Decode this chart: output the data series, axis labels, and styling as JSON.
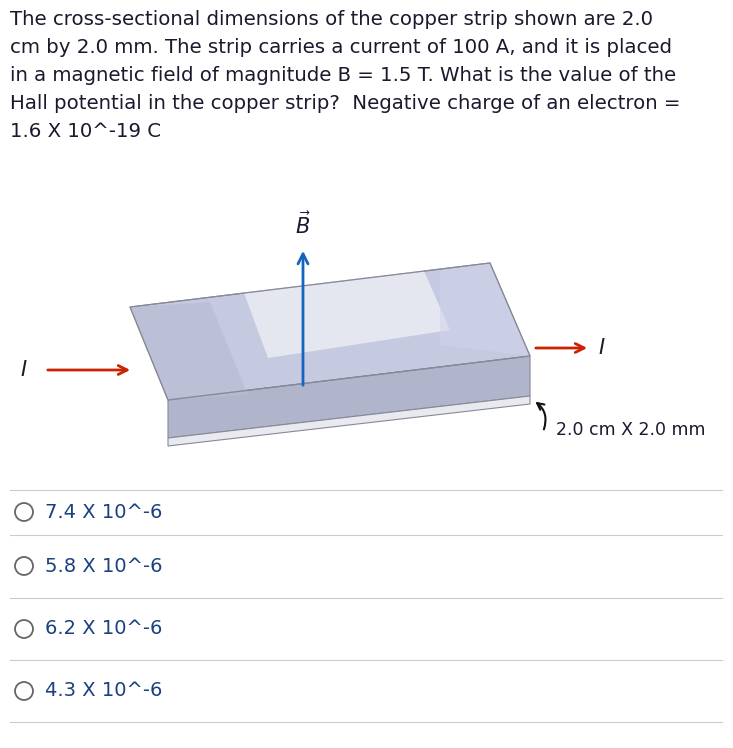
{
  "question_lines": [
    "The cross-sectional dimensions of the copper strip shown are 2.0",
    "cm by 2.0 mm. The strip carries a current of 100 A, and it is placed",
    "in a magnetic field of magnitude B = 1.5 T. What is the value of the",
    "Hall potential in the copper strip?  Negative charge of an electron =",
    "1.6 X 10^-19 C"
  ],
  "options": [
    "7.4 X 10^-6",
    "5.8 X 10^-6",
    "6.2 X 10^-6",
    "4.3 X 10^-6"
  ],
  "bg_color": "#ffffff",
  "text_color": "#1a1a2e",
  "option_text_color": "#1a4080",
  "strip_top_color": "#c5cae0",
  "strip_top_highlight": "#e8eaf5",
  "strip_side_color": "#b0b5cc",
  "strip_bottom_color": "#d8dae8",
  "strip_edge_color": "#888899",
  "arrow_red": "#cc2200",
  "arrow_blue": "#1565c0",
  "arrow_black": "#111111",
  "dim_label": "2.0 cm X 2.0 mm",
  "divider_color": "#cccccc"
}
